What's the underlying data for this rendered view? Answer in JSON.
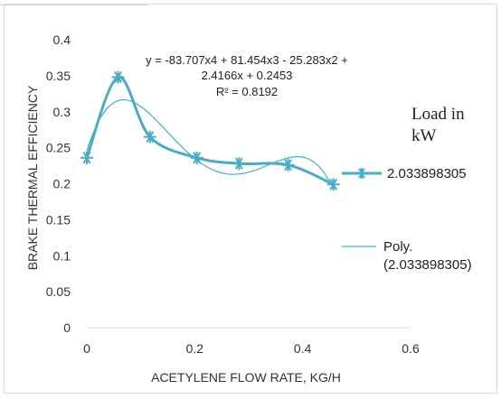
{
  "chart_data": {
    "type": "scatter",
    "xlabel": "ACETYLENE FLOW RATE, KG/H",
    "ylabel": "BRAKE THERMAL EFFICIENCY",
    "xlim": [
      0,
      0.6
    ],
    "ylim": [
      0,
      0.4
    ],
    "x_ticks": [
      "0",
      "0.2",
      "0.4",
      "0.6"
    ],
    "y_ticks": [
      "0",
      "0.05",
      "0.1",
      "0.15",
      "0.2",
      "0.25",
      "0.3",
      "0.35",
      "0.4"
    ],
    "grid": false,
    "legend_title": [
      "Load in",
      "kW"
    ],
    "legend_position": "right",
    "series": [
      {
        "name": "2.033898305",
        "style": "smoothed line with star markers",
        "color": "#4bacc6",
        "x": [
          0.0,
          0.058,
          0.117,
          0.204,
          0.282,
          0.373,
          0.457
        ],
        "y": [
          0.236,
          0.348,
          0.265,
          0.236,
          0.228,
          0.226,
          0.199
        ]
      },
      {
        "name": "Poly.",
        "name_line2": "(2.033898305)",
        "style": "thin polynomial trendline",
        "color": "#4bacc6",
        "coefficients": [
          0.2453,
          2.4166,
          -25.283,
          81.454,
          -83.707
        ]
      }
    ],
    "annotation": {
      "lines": [
        "y = -83.707x4 + 81.454x3 - 25.283x2 +",
        "2.4166x + 0.2453",
        "R² = 0.8192"
      ]
    }
  }
}
